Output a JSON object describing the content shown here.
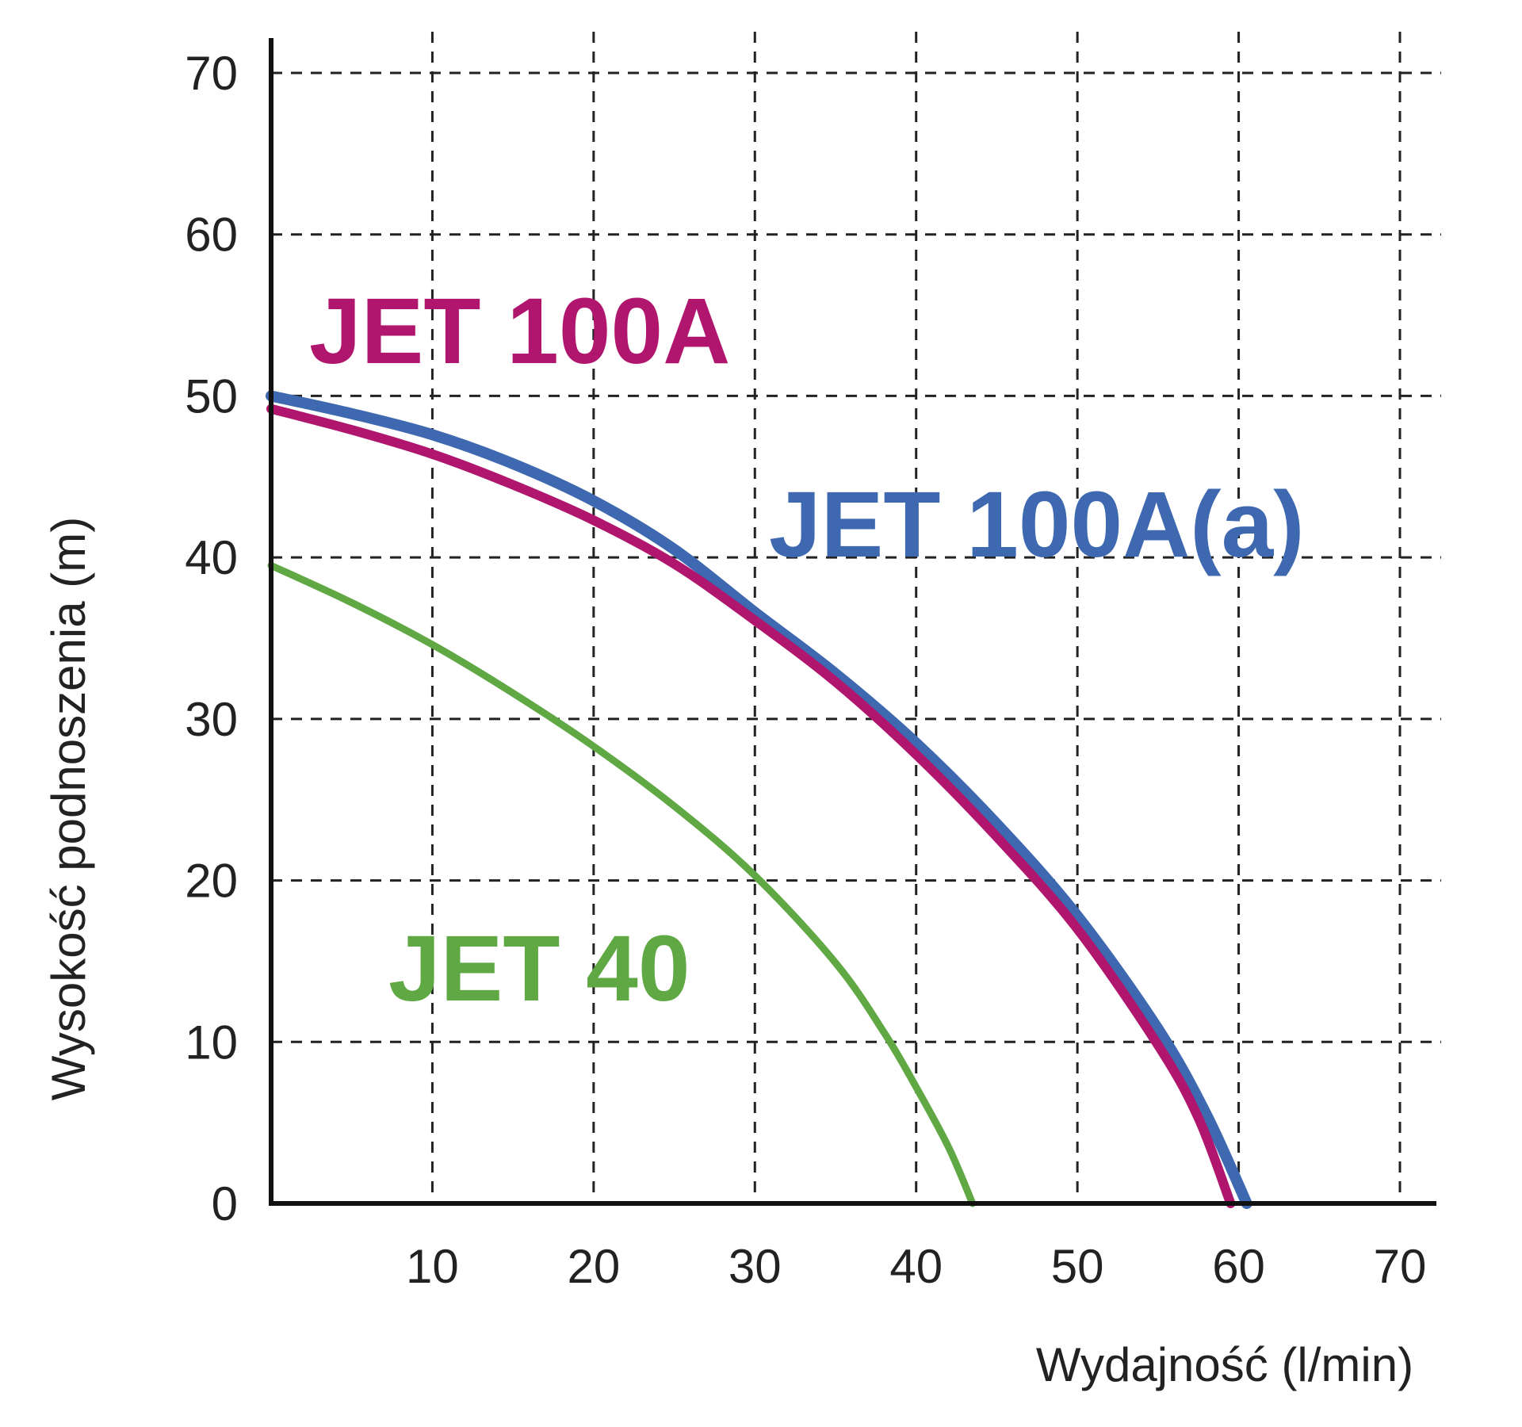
{
  "chart_data": {
    "type": "line",
    "xlabel": "Wydajność (l/min)",
    "ylabel": "Wysokość podnoszenia (m)",
    "xlim": [
      0,
      70
    ],
    "ylim": [
      0,
      70
    ],
    "xticks": [
      "10",
      "20",
      "30",
      "40",
      "50",
      "60",
      "70"
    ],
    "yticks": [
      "0",
      "10",
      "20",
      "30",
      "40",
      "50",
      "60",
      "70"
    ],
    "grid": true,
    "series": [
      {
        "name": "JET 100A(a)",
        "color": "#3e68b0",
        "x": [
          0,
          5,
          10,
          15,
          20,
          25,
          30,
          35,
          40,
          45,
          50,
          55,
          58,
          60.5
        ],
        "y": [
          50,
          48.9,
          47.6,
          45.8,
          43.5,
          40.5,
          36.6,
          32.8,
          28.5,
          23.5,
          17.8,
          10.8,
          5.5,
          0
        ]
      },
      {
        "name": "JET 100A",
        "color": "#b0166e",
        "x": [
          0,
          5,
          10,
          15,
          20,
          25,
          30,
          35,
          40,
          45,
          50,
          55,
          57.5,
          59.5
        ],
        "y": [
          49.2,
          47.9,
          46.4,
          44.5,
          42.3,
          39.6,
          36.1,
          32.3,
          27.8,
          22.7,
          17.0,
          9.8,
          5.3,
          0
        ]
      },
      {
        "name": "JET 40",
        "color": "#5fa844",
        "x": [
          0,
          5,
          10,
          15,
          20,
          25,
          30,
          35,
          38,
          40,
          42,
          43.5
        ],
        "y": [
          39.5,
          37.2,
          34.6,
          31.6,
          28.3,
          24.6,
          20.3,
          14.9,
          10.6,
          7.2,
          3.5,
          0
        ]
      }
    ]
  }
}
